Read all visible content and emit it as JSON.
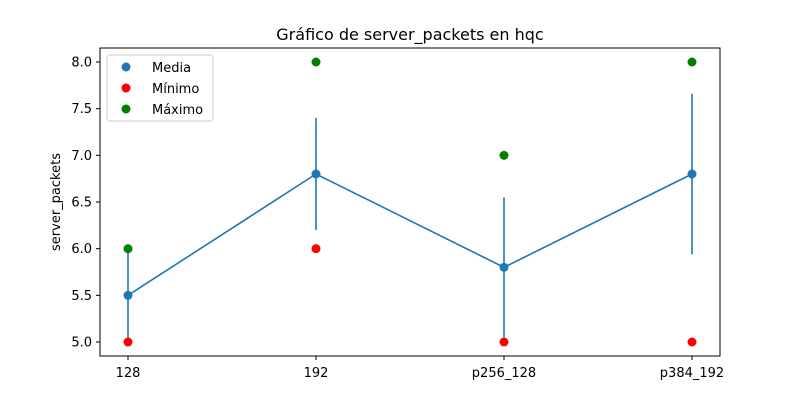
{
  "chart_data": {
    "type": "line",
    "title": "Gráfico de server_packets en hqc",
    "xlabel": "",
    "ylabel": "server_packets",
    "categories": [
      "128",
      "192",
      "p256_128",
      "p384_192"
    ],
    "ylim": [
      4.85,
      8.15
    ],
    "yticks": [
      5.0,
      5.5,
      6.0,
      6.5,
      7.0,
      7.5,
      8.0
    ],
    "ytick_labels": [
      "5.0",
      "5.5",
      "6.0",
      "6.5",
      "7.0",
      "7.5",
      "8.0"
    ],
    "grid": false,
    "legend_position": "top-left",
    "series": [
      {
        "name": "Media",
        "kind": "line-with-markers",
        "color": "#1f77b4",
        "values": [
          5.5,
          6.8,
          5.8,
          6.8
        ],
        "error": [
          0.5,
          0.6,
          0.75,
          0.86
        ]
      },
      {
        "name": "Mínimo",
        "kind": "scatter",
        "color": "#ff0000",
        "values": [
          5.0,
          6.0,
          5.0,
          5.0
        ]
      },
      {
        "name": "Máximo",
        "kind": "scatter",
        "color": "#008000",
        "values": [
          6.0,
          8.0,
          7.0,
          8.0
        ]
      }
    ]
  }
}
